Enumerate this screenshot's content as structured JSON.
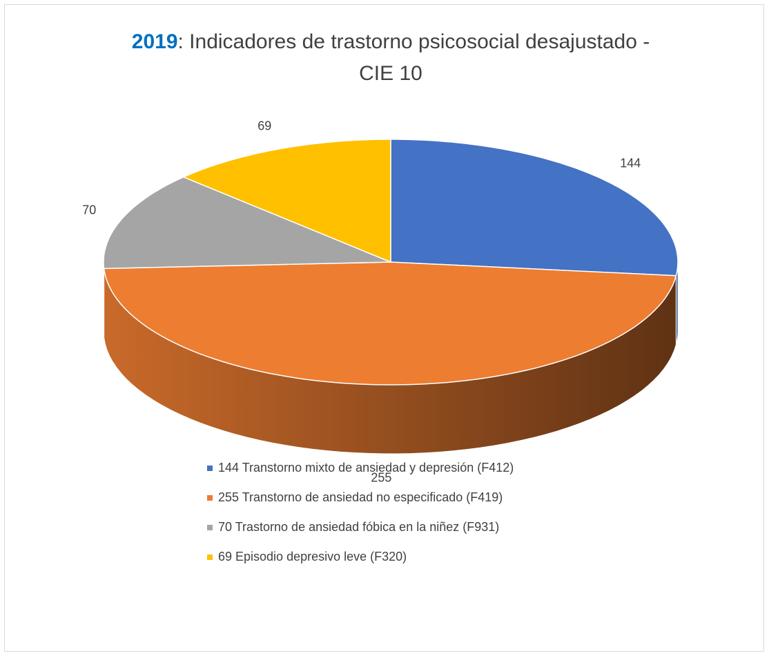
{
  "chart_data": {
    "type": "pie",
    "title_year": "2019",
    "title": ": Indicadores de trastorno psicosocial desajustado -",
    "title_line2": "CIE 10",
    "categories": [
      "144 Transtorno mixto de ansiedad y depresión (F412)",
      "255 Transtorno de ansiedad no especificado (F419)",
      "70 Trastorno de ansiedad fóbica en la niñez (F931)",
      "69 Episodio depresivo leve (F320)"
    ],
    "values": [
      144,
      255,
      70,
      69
    ],
    "colors": [
      "#4472c4",
      "#ed7d31",
      "#a5a5a5",
      "#ffc000"
    ],
    "title_year_color": "#0070c0",
    "legend": "bottom"
  }
}
